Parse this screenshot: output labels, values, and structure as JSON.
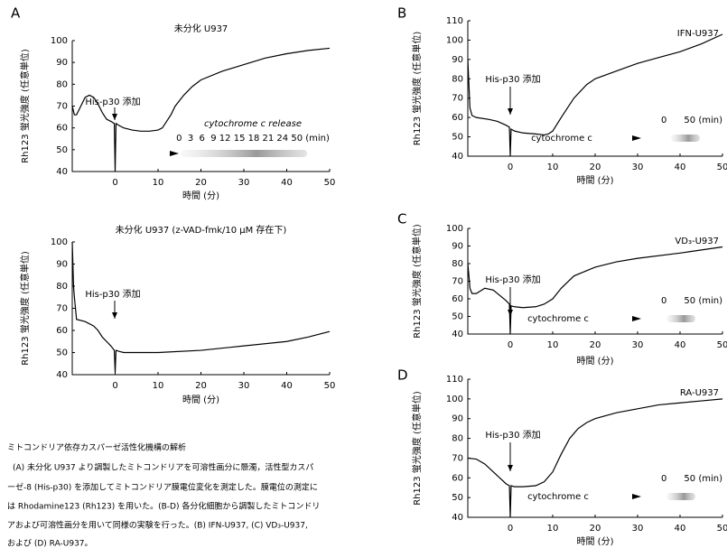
{
  "chart_data": [
    {
      "type": "line",
      "panel_label": "A",
      "title": "未分化 U937",
      "ylabel": "Rh123 蛍光強度 (任意単位)",
      "xlabel": "時間 (分)",
      "annotation": "His-p30 添加",
      "cytochrome_label": "cytochrome c release",
      "time_labels": "0  3  6  9 12 15 18 21 24 50 (min)",
      "x": [
        -10,
        -9.5,
        -9,
        -8,
        -7,
        -6,
        -5,
        -4,
        -3,
        -2,
        -1,
        -0.2,
        0,
        0.2,
        1,
        2,
        4,
        6,
        8,
        10,
        11,
        12,
        13,
        14,
        16,
        18,
        20,
        25,
        30,
        35,
        40,
        45,
        50
      ],
      "series": [
        {
          "color": "#000000",
          "values": [
            70,
            66,
            66,
            70,
            74,
            75,
            74,
            71,
            67,
            64,
            63,
            62,
            40,
            62,
            61,
            60,
            59,
            58.5,
            58.5,
            59,
            60,
            63,
            66,
            70,
            75,
            79,
            82,
            86,
            89,
            92,
            94,
            95.5,
            96.5
          ]
        }
      ],
      "xlim": [
        -10,
        50
      ],
      "ylim": [
        40,
        100
      ],
      "xticks": [
        0,
        10,
        20,
        30,
        40,
        50
      ],
      "yticks": [
        40,
        50,
        60,
        70,
        80,
        90,
        100
      ]
    },
    {
      "type": "line",
      "title": "未分化 U937 (z-VAD-fmk/10 μM 存在下)",
      "ylabel": "Rh123 蛍光強度 (任意単位)",
      "xlabel": "時間 (分)",
      "annotation": "His-p30 添加",
      "x": [
        -10,
        -9.7,
        -9.5,
        -9,
        -7,
        -5,
        -4,
        -3,
        -2,
        -1,
        -0.2,
        0,
        0.2,
        1,
        2,
        5,
        10,
        20,
        30,
        40,
        45,
        50
      ],
      "series": [
        {
          "color": "#000000",
          "values": [
            100,
            80,
            75,
            65,
            64,
            62,
            60,
            57,
            55,
            53,
            51,
            41,
            51,
            50.5,
            50,
            50,
            50,
            51,
            53,
            55,
            57,
            59.5
          ]
        }
      ],
      "xlim": [
        -10,
        50
      ],
      "ylim": [
        40,
        100
      ],
      "xticks": [
        0,
        10,
        20,
        30,
        40,
        50
      ],
      "yticks": [
        40,
        50,
        60,
        70,
        80,
        90,
        100
      ]
    },
    {
      "type": "line",
      "panel_label": "B",
      "inner_label": "IFN-U937",
      "ylabel": "Rh123 蛍光強度 (任意単位)",
      "xlabel": "時間 (分)",
      "annotation": "His-p30 添加",
      "cytochrome_label": "cytochrome c",
      "time_labels": "0      50 (min)",
      "x": [
        -10,
        -9.7,
        -9.5,
        -9,
        -8,
        -5,
        -3,
        -1,
        -0.2,
        0,
        0.2,
        1,
        3,
        6,
        8,
        9,
        10,
        12,
        15,
        18,
        20,
        25,
        30,
        35,
        40,
        45,
        50
      ],
      "series": [
        {
          "color": "#000000",
          "values": [
            90,
            75,
            65,
            61,
            60,
            59,
            58,
            56,
            55,
            40,
            54,
            53,
            52,
            51.5,
            51,
            51.5,
            53,
            60,
            70,
            77,
            80,
            84,
            88,
            91,
            94,
            98,
            103
          ]
        }
      ],
      "xlim": [
        -10,
        50
      ],
      "ylim": [
        40,
        110
      ],
      "xticks": [
        0,
        10,
        20,
        30,
        40,
        50
      ],
      "yticks": [
        40,
        50,
        60,
        70,
        80,
        90,
        100,
        110
      ]
    },
    {
      "type": "line",
      "panel_label": "C",
      "inner_label": "VD₃-U937",
      "ylabel": "Rh123 蛍光強度 (任意単位)",
      "xlabel": "時間 (分)",
      "annotation": "His-p30 添加",
      "cytochrome_label": "cytochrome c",
      "time_labels": "0      50 (min)",
      "x": [
        -10,
        -9.7,
        -9.5,
        -9,
        -8,
        -6,
        -4,
        -2,
        -1,
        -0.2,
        0,
        0.2,
        1,
        3,
        6,
        8,
        10,
        12,
        15,
        18,
        20,
        25,
        30,
        40,
        50
      ],
      "series": [
        {
          "color": "#000000",
          "values": [
            80,
            72,
            66,
            63,
            63,
            66,
            65,
            61,
            59,
            57,
            40,
            56,
            55.5,
            55,
            55.5,
            57,
            60,
            66,
            73,
            76,
            78,
            81,
            83,
            86,
            89.5
          ]
        }
      ],
      "xlim": [
        -10,
        50
      ],
      "ylim": [
        40,
        100
      ],
      "xticks": [
        0,
        10,
        20,
        30,
        40,
        50
      ],
      "yticks": [
        40,
        50,
        60,
        70,
        80,
        90,
        100
      ]
    },
    {
      "type": "line",
      "panel_label": "D",
      "inner_label": "RA-U937",
      "ylabel": "Rh123 蛍光強度 (任意単位)",
      "xlabel": "時間 (分)",
      "annotation": "His-p30 添加",
      "cytochrome_label": "cytochrome c",
      "time_labels": "0      50 (min)",
      "x": [
        -10,
        -8,
        -6,
        -4,
        -3,
        -2,
        -1,
        -0.2,
        0,
        0.2,
        1,
        3,
        6,
        8,
        10,
        12,
        14,
        16,
        18,
        20,
        25,
        30,
        35,
        40,
        45,
        50
      ],
      "series": [
        {
          "color": "#000000",
          "values": [
            70,
            69.5,
            67,
            63,
            61,
            59,
            57,
            56,
            40,
            56,
            55.5,
            55.5,
            56,
            58,
            63,
            72,
            80,
            85,
            88,
            90,
            93,
            95,
            97,
            98,
            99,
            100
          ]
        }
      ],
      "xlim": [
        -10,
        50
      ],
      "ylim": [
        40,
        110
      ],
      "xticks": [
        0,
        10,
        20,
        30,
        40,
        50
      ],
      "yticks": [
        40,
        50,
        60,
        70,
        80,
        90,
        100,
        110
      ]
    }
  ],
  "caption": {
    "title": "ミトコンドリア依存カスパーゼ活性化機構の解析",
    "lines": [
      "(A) 未分化 U937 より調製したミトコンドリアを可溶性画分に懸濁，活性型カスパ",
      "ーゼ-8 (His-p30) を添加してミトコンドリア膜電位変化を測定した。膜電位の測定に",
      "は Rhodamine123 (Rh123) を用いた。(B-D) 各分化細胞から調製したミトコンドリ",
      "アおよび可溶性画分を用いて同様の実験を行った。(B) IFN-U937, (C) VD₃-U937,",
      "および (D) RA-U937。"
    ]
  }
}
